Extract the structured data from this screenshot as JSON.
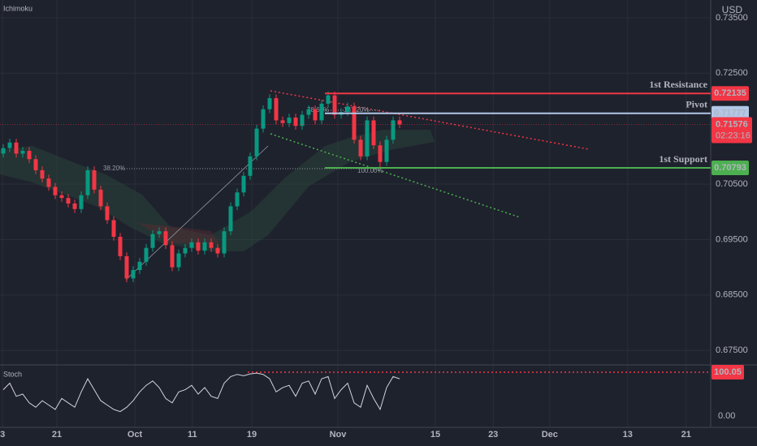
{
  "chart_data": {
    "type": "candlestick",
    "indicator": "Ichimoku",
    "currency": "USD",
    "open": [
      0.7105,
      0.7115,
      0.7125,
      0.7105,
      0.711,
      0.7095,
      0.7075,
      0.706,
      0.7045,
      0.703,
      0.7025,
      0.7015,
      0.7005,
      0.703,
      0.7075,
      0.704,
      0.701,
      0.6985,
      0.6955,
      0.692,
      0.688,
      0.6895,
      0.691,
      0.6935,
      0.696,
      0.6965,
      0.694,
      0.69,
      0.6925,
      0.6935,
      0.6945,
      0.693,
      0.6945,
      0.6935,
      0.6925,
      0.6965,
      0.701,
      0.7035,
      0.7065,
      0.71,
      0.715,
      0.7185,
      0.7205,
      0.7165,
      0.716,
      0.717,
      0.7155,
      0.7175,
      0.7185,
      0.7165,
      0.7195,
      0.721,
      0.7175,
      0.718,
      0.719,
      0.713,
      0.71,
      0.7165,
      0.712,
      0.709,
      0.713,
      0.7165
    ],
    "high": [
      0.7122,
      0.7132,
      0.7132,
      0.7117,
      0.7117,
      0.7102,
      0.7082,
      0.7067,
      0.7052,
      0.7037,
      0.7032,
      0.7022,
      0.7037,
      0.7082,
      0.7082,
      0.7047,
      0.7017,
      0.6992,
      0.6962,
      0.6927,
      0.6902,
      0.6917,
      0.6942,
      0.6967,
      0.6972,
      0.6972,
      0.6947,
      0.6932,
      0.6942,
      0.6952,
      0.6952,
      0.6952,
      0.6952,
      0.6942,
      0.6972,
      0.7017,
      0.7042,
      0.7072,
      0.7107,
      0.7157,
      0.7192,
      0.7212,
      0.7212,
      0.7172,
      0.7177,
      0.7177,
      0.7182,
      0.7192,
      0.7192,
      0.7202,
      0.7217,
      0.7217,
      0.7187,
      0.7197,
      0.7197,
      0.7137,
      0.7172,
      0.7172,
      0.7127,
      0.7137,
      0.7172,
      0.7172
    ],
    "low": [
      0.7098,
      0.7108,
      0.7098,
      0.7098,
      0.7088,
      0.7068,
      0.7053,
      0.7038,
      0.7023,
      0.7018,
      0.7008,
      0.6998,
      0.6998,
      0.7023,
      0.7033,
      0.7003,
      0.6978,
      0.6948,
      0.6913,
      0.6873,
      0.6873,
      0.6888,
      0.6903,
      0.6928,
      0.6953,
      0.6933,
      0.6893,
      0.6893,
      0.6918,
      0.6928,
      0.6923,
      0.6923,
      0.6928,
      0.6918,
      0.6918,
      0.6958,
      0.7003,
      0.7028,
      0.7058,
      0.7093,
      0.7143,
      0.7178,
      0.7158,
      0.7153,
      0.7153,
      0.7148,
      0.7148,
      0.7168,
      0.7158,
      0.7158,
      0.7188,
      0.7168,
      0.7168,
      0.7173,
      0.7123,
      0.7093,
      0.7093,
      0.7113,
      0.708,
      0.7083,
      0.7123,
      0.7151
    ],
    "close": [
      0.7115,
      0.7125,
      0.7105,
      0.711,
      0.7095,
      0.7075,
      0.706,
      0.7045,
      0.703,
      0.7025,
      0.7015,
      0.7005,
      0.703,
      0.7075,
      0.704,
      0.701,
      0.6985,
      0.6955,
      0.692,
      0.688,
      0.6895,
      0.691,
      0.6935,
      0.696,
      0.6965,
      0.694,
      0.69,
      0.6925,
      0.6935,
      0.6945,
      0.693,
      0.6945,
      0.6935,
      0.6925,
      0.6965,
      0.701,
      0.7035,
      0.7065,
      0.71,
      0.715,
      0.7185,
      0.7205,
      0.7165,
      0.716,
      0.717,
      0.7155,
      0.7175,
      0.7185,
      0.7165,
      0.7195,
      0.721,
      0.7175,
      0.718,
      0.719,
      0.713,
      0.71,
      0.7165,
      0.712,
      0.709,
      0.713,
      0.7165,
      0.71576
    ],
    "up_color": "#089981",
    "down_color": "#f23645",
    "xlim": [
      -0.5,
      109.5
    ],
    "xticks": [
      {
        "value": -0.1,
        "label": "3"
      },
      {
        "value": 8.25,
        "label": "21"
      },
      {
        "value": 20.25,
        "label": "Oct"
      },
      {
        "value": 29.1,
        "label": "11"
      },
      {
        "value": 38.25,
        "label": "19"
      },
      {
        "value": 51.5,
        "label": "Nov"
      },
      {
        "value": 66.5,
        "label": "15"
      },
      {
        "value": 75.4,
        "label": "23"
      },
      {
        "value": 84.1,
        "label": "Dec"
      },
      {
        "value": 96.1,
        "label": "13"
      },
      {
        "value": 105.1,
        "label": "21"
      }
    ],
    "ylim": [
      0.6724,
      0.7382
    ],
    "yticks": [
      {
        "value": 0.735,
        "label": "0.73500"
      },
      {
        "value": 0.725,
        "label": "0.72500"
      },
      {
        "value": 0.705,
        "label": "0.70500"
      },
      {
        "value": 0.695,
        "label": "0.69500"
      },
      {
        "value": 0.685,
        "label": "0.68500"
      },
      {
        "value": 0.675,
        "label": "0.67500"
      }
    ],
    "grid": true,
    "levels": [
      {
        "name": "1st Resistance",
        "value": 0.72135,
        "color": "#f23645"
      },
      {
        "name": "Pivot",
        "value": 0.71777,
        "color": "#b2c7e8"
      },
      {
        "name": "1st Support",
        "value": 0.70793,
        "color": "#4caf50"
      }
    ],
    "last_price": {
      "value": 0.71576,
      "countdown": "02:23:16",
      "color": "#f23645"
    },
    "fib_labels": [
      "38.20%",
      "78.60%",
      "127.20%",
      "100.00%"
    ],
    "stoch": {
      "name": "Stoch",
      "color": "#d1d4dc",
      "values": [
        60,
        75,
        45,
        50,
        30,
        20,
        35,
        25,
        15,
        40,
        30,
        20,
        55,
        85,
        60,
        35,
        25,
        15,
        10,
        20,
        35,
        55,
        70,
        80,
        65,
        40,
        30,
        55,
        60,
        70,
        50,
        65,
        45,
        40,
        75,
        90,
        95,
        92,
        96,
        98,
        95,
        85,
        55,
        65,
        70,
        45,
        75,
        80,
        50,
        85,
        90,
        40,
        60,
        75,
        30,
        20,
        70,
        40,
        15,
        65,
        90,
        85
      ],
      "ylim": [
        -26,
        113
      ],
      "yticks": [
        {
          "value": 0,
          "label": "0.00"
        }
      ],
      "level": 100.05,
      "level_color": "#f23645"
    }
  }
}
